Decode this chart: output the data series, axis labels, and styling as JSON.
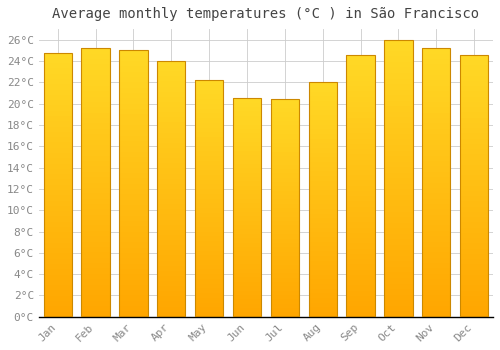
{
  "title": "Average monthly temperatures (°C ) in São Francisco",
  "months": [
    "Jan",
    "Feb",
    "Mar",
    "Apr",
    "May",
    "Jun",
    "Jul",
    "Aug",
    "Sep",
    "Oct",
    "Nov",
    "Dec"
  ],
  "values": [
    24.8,
    25.2,
    25.0,
    24.0,
    22.2,
    20.5,
    20.4,
    22.0,
    24.6,
    26.0,
    25.2,
    24.6
  ],
  "bar_color_top": "#FFAA00",
  "bar_color_bottom": "#FFCC44",
  "bar_edge_color": "#CC8800",
  "background_color": "#FFFFFF",
  "plot_bg_color": "#FFFFFF",
  "grid_color": "#CCCCCC",
  "text_color": "#888888",
  "ylim": [
    0,
    27
  ],
  "ytick_step": 2,
  "title_fontsize": 10,
  "tick_fontsize": 8,
  "font_family": "monospace"
}
